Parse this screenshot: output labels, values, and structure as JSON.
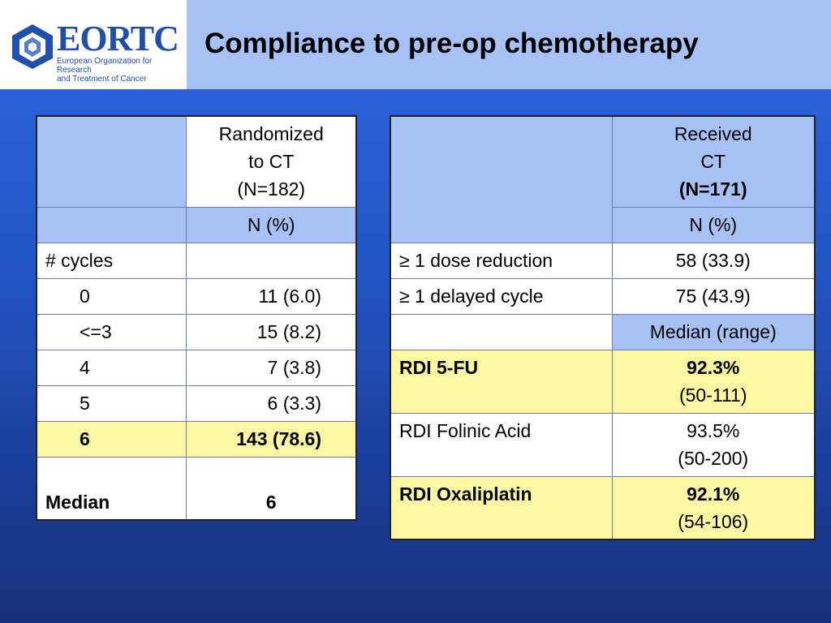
{
  "header": {
    "logo": {
      "name": "EORTC",
      "subtitle_line1": "European Organization for Research",
      "subtitle_line2": "and Treatment of Cancer"
    },
    "title": "Compliance to pre-op chemotherapy"
  },
  "table1": {
    "header_line1": "Randomized",
    "header_line2": "to CT",
    "header_line3": "(N=182)",
    "unit": "N (%)",
    "rows": [
      {
        "label": "# cycles",
        "value": ""
      },
      {
        "label": "0",
        "value": "11 (6.0)"
      },
      {
        "label": "<=3",
        "value": "15 (8.2)"
      },
      {
        "label": "4",
        "value": "7 (3.8)"
      },
      {
        "label": "5",
        "value": "6 (3.3)"
      },
      {
        "label": "6",
        "value": "143 (78.6)"
      },
      {
        "label": "Median",
        "value": "6"
      }
    ]
  },
  "table2": {
    "header_line1": "Received",
    "header_line2": "CT",
    "header_line3": "(N=171)",
    "unit": "N (%)",
    "rows": [
      {
        "label": "≥ 1 dose reduction",
        "value": "58 (33.9)"
      },
      {
        "label": "≥ 1 delayed cycle",
        "value": "75 (43.9)"
      }
    ],
    "unit2": "Median (range)",
    "rdi_rows": [
      {
        "label": "RDI 5-FU",
        "value": "92.3%",
        "range": "(50-111)"
      },
      {
        "label": "RDI Folinic Acid",
        "value": "93.5%",
        "range": "(50-200)"
      },
      {
        "label": "RDI Oxaliplatin",
        "value": "92.1%",
        "range": "(54-106)"
      }
    ]
  },
  "colors": {
    "header_band": "#a8c1f5",
    "highlight": "#fdf7a4",
    "brand": "#1f4fa8",
    "background_top": "#2e66e0",
    "background_bottom": "#17307a"
  }
}
